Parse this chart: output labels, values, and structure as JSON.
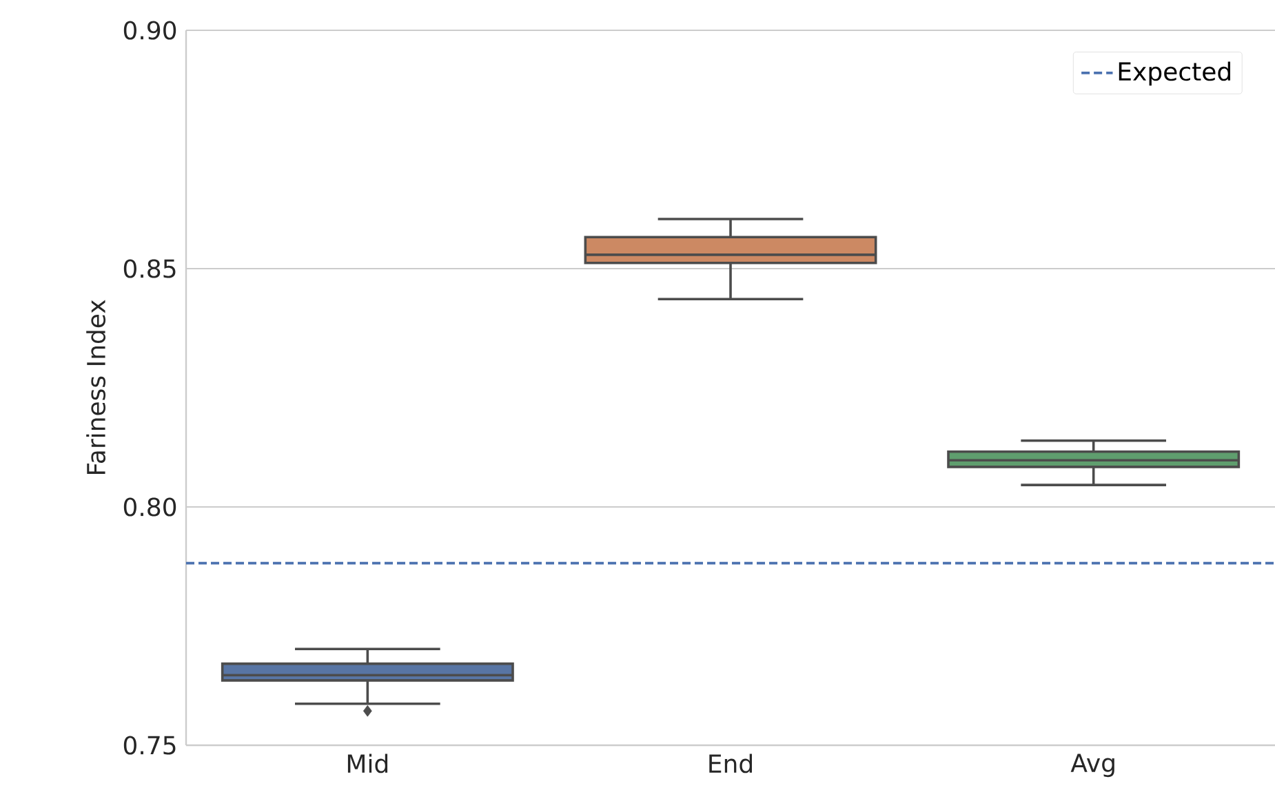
{
  "chart_data": {
    "type": "box",
    "ylabel": "Fariness Index",
    "categories": [
      "Mid",
      "End",
      "Avg"
    ],
    "colors": [
      "#5875a4",
      "#cc8963",
      "#5f9e6e"
    ],
    "boxes": [
      {
        "low": 0.7587,
        "q1": 0.7636,
        "median": 0.7647,
        "q3": 0.7671,
        "high": 0.7702,
        "outliers": [
          0.7572
        ]
      },
      {
        "low": 0.8436,
        "q1": 0.8512,
        "median": 0.8529,
        "q3": 0.8566,
        "high": 0.8604
      },
      {
        "low": 0.8046,
        "q1": 0.8084,
        "median": 0.8098,
        "q3": 0.8116,
        "high": 0.8139
      }
    ],
    "ylim": [
      0.75,
      0.9
    ],
    "yticks": [
      {
        "value": 0.75,
        "label": "0.75"
      },
      {
        "value": 0.8,
        "label": "0.80"
      },
      {
        "value": 0.85,
        "label": "0.85"
      },
      {
        "value": 0.9,
        "label": "0.90"
      }
    ],
    "ref_lines": [
      {
        "axis": "y",
        "value": 0.7882,
        "label": "Expected",
        "color": "#4c72b0",
        "line_style": "dashed"
      }
    ],
    "grid": "y",
    "legend": "top right",
    "marker": "diamond"
  }
}
